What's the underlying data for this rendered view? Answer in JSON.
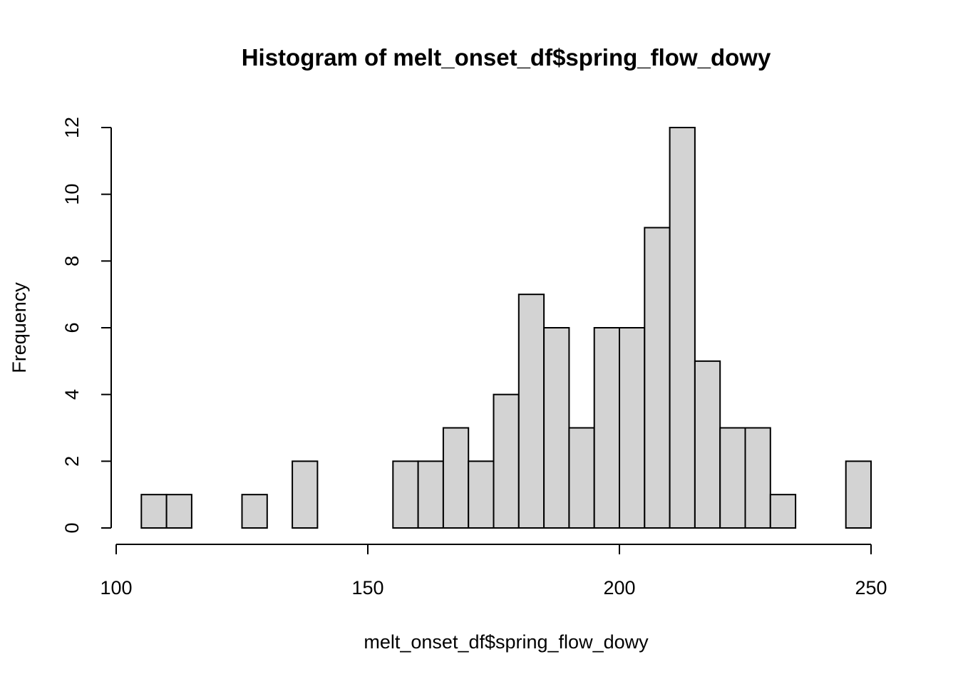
{
  "chart_data": {
    "type": "bar",
    "title": "Histogram of melt_onset_df$spring_flow_dowy",
    "xlabel": "melt_onset_df$spring_flow_dowy",
    "ylabel": "Frequency",
    "bin_edges": [
      105,
      110,
      115,
      120,
      125,
      130,
      135,
      140,
      145,
      150,
      155,
      160,
      165,
      170,
      175,
      180,
      185,
      190,
      195,
      200,
      205,
      210,
      215,
      220,
      225,
      230,
      235,
      240,
      245,
      250
    ],
    "values": [
      1,
      1,
      0,
      0,
      1,
      0,
      2,
      0,
      0,
      0,
      2,
      2,
      3,
      2,
      4,
      7,
      6,
      3,
      6,
      6,
      9,
      12,
      5,
      3,
      3,
      1,
      0,
      0,
      2
    ],
    "xlim": [
      100,
      250
    ],
    "ylim": [
      0,
      12
    ],
    "x_ticks": [
      100,
      150,
      200,
      250
    ],
    "y_ticks": [
      0,
      2,
      4,
      6,
      8,
      10,
      12
    ],
    "bar_fill": "#d3d3d3",
    "grid": false
  }
}
